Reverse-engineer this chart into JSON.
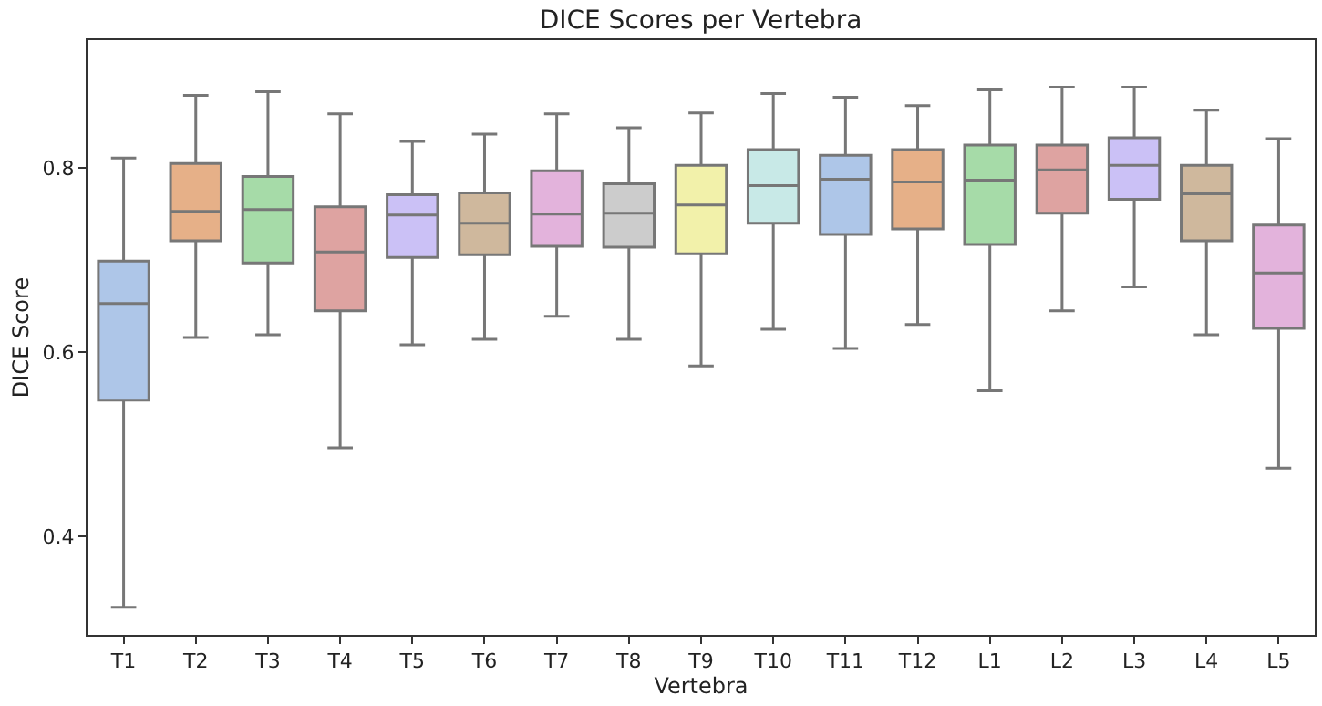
{
  "chart_data": {
    "type": "box",
    "title": "DICE Scores per Vertebra",
    "xlabel": "Vertebra",
    "ylabel": "DICE Score",
    "categories": [
      "T1",
      "T2",
      "T3",
      "T4",
      "T5",
      "T6",
      "T7",
      "T8",
      "T9",
      "T10",
      "T11",
      "T12",
      "L1",
      "L2",
      "L3",
      "L4",
      "L5"
    ],
    "colors": [
      "#aec6e8",
      "#e6b088",
      "#a6dba8",
      "#dea3a1",
      "#cbc1f6",
      "#cfb89d",
      "#e3b3dc",
      "#cccccc",
      "#f2f1aa",
      "#c8e9e7",
      "#aec6e8",
      "#e6b088",
      "#a6dba8",
      "#dea3a1",
      "#cbc1f6",
      "#cfb89d",
      "#e3b3dc"
    ],
    "boxes": [
      {
        "low": 0.323,
        "q1": 0.548,
        "median": 0.653,
        "q3": 0.699,
        "high": 0.811
      },
      {
        "low": 0.616,
        "q1": 0.721,
        "median": 0.753,
        "q3": 0.805,
        "high": 0.879
      },
      {
        "low": 0.619,
        "q1": 0.697,
        "median": 0.755,
        "q3": 0.791,
        "high": 0.883
      },
      {
        "low": 0.496,
        "q1": 0.645,
        "median": 0.709,
        "q3": 0.758,
        "high": 0.859
      },
      {
        "low": 0.608,
        "q1": 0.703,
        "median": 0.749,
        "q3": 0.771,
        "high": 0.829
      },
      {
        "low": 0.614,
        "q1": 0.706,
        "median": 0.74,
        "q3": 0.773,
        "high": 0.837
      },
      {
        "low": 0.639,
        "q1": 0.715,
        "median": 0.75,
        "q3": 0.797,
        "high": 0.859
      },
      {
        "low": 0.614,
        "q1": 0.714,
        "median": 0.751,
        "q3": 0.783,
        "high": 0.844
      },
      {
        "low": 0.585,
        "q1": 0.707,
        "median": 0.76,
        "q3": 0.803,
        "high": 0.86
      },
      {
        "low": 0.625,
        "q1": 0.74,
        "median": 0.781,
        "q3": 0.82,
        "high": 0.881
      },
      {
        "low": 0.604,
        "q1": 0.728,
        "median": 0.788,
        "q3": 0.814,
        "high": 0.877
      },
      {
        "low": 0.63,
        "q1": 0.734,
        "median": 0.785,
        "q3": 0.82,
        "high": 0.868
      },
      {
        "low": 0.558,
        "q1": 0.717,
        "median": 0.787,
        "q3": 0.825,
        "high": 0.885
      },
      {
        "low": 0.645,
        "q1": 0.751,
        "median": 0.798,
        "q3": 0.825,
        "high": 0.888
      },
      {
        "low": 0.671,
        "q1": 0.766,
        "median": 0.803,
        "q3": 0.833,
        "high": 0.888
      },
      {
        "low": 0.619,
        "q1": 0.721,
        "median": 0.772,
        "q3": 0.803,
        "high": 0.863
      },
      {
        "low": 0.474,
        "q1": 0.626,
        "median": 0.686,
        "q3": 0.738,
        "high": 0.832
      }
    ],
    "ylim": [
      0.293,
      0.939
    ],
    "yticks": [
      0.4,
      0.6,
      0.8
    ],
    "grid": false
  }
}
